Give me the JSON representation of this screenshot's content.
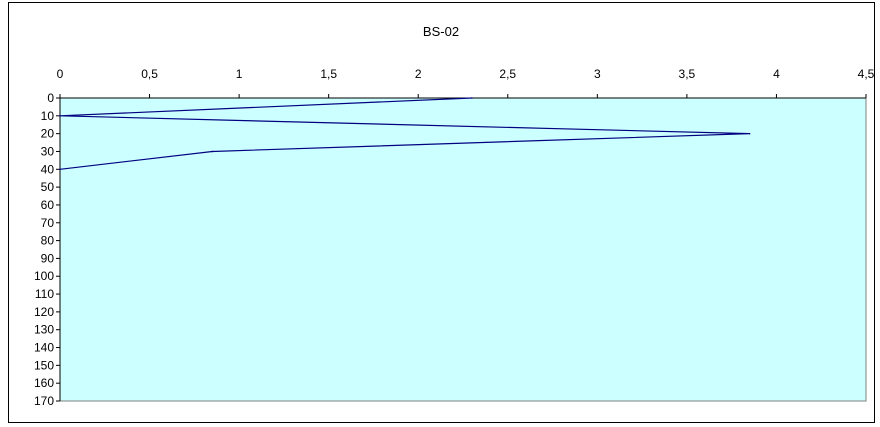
{
  "chart_data": {
    "type": "line",
    "title": "BS-02",
    "xlabel": "",
    "ylabel": "",
    "x_ticks": [
      "0",
      "0,5",
      "1",
      "1,5",
      "2",
      "2,5",
      "3",
      "3,5",
      "4",
      "4,5"
    ],
    "y_ticks": [
      "0",
      "10",
      "20",
      "30",
      "40",
      "50",
      "60",
      "70",
      "80",
      "90",
      "100",
      "110",
      "120",
      "130",
      "140",
      "150",
      "160",
      "170"
    ],
    "xlim": [
      0,
      4.5
    ],
    "ylim": [
      0,
      170
    ],
    "x_axis_position": "top",
    "y_axis_inverted": true,
    "grid": false,
    "legend": "none",
    "plot_background": "#ccffff",
    "series": [
      {
        "color": "#000080",
        "points": [
          {
            "x": 2.3,
            "y": 0
          },
          {
            "x": 0,
            "y": 10
          },
          {
            "x": 3.85,
            "y": 20
          },
          {
            "x": 0.85,
            "y": 30
          },
          {
            "x": 0,
            "y": 40
          }
        ]
      }
    ]
  }
}
